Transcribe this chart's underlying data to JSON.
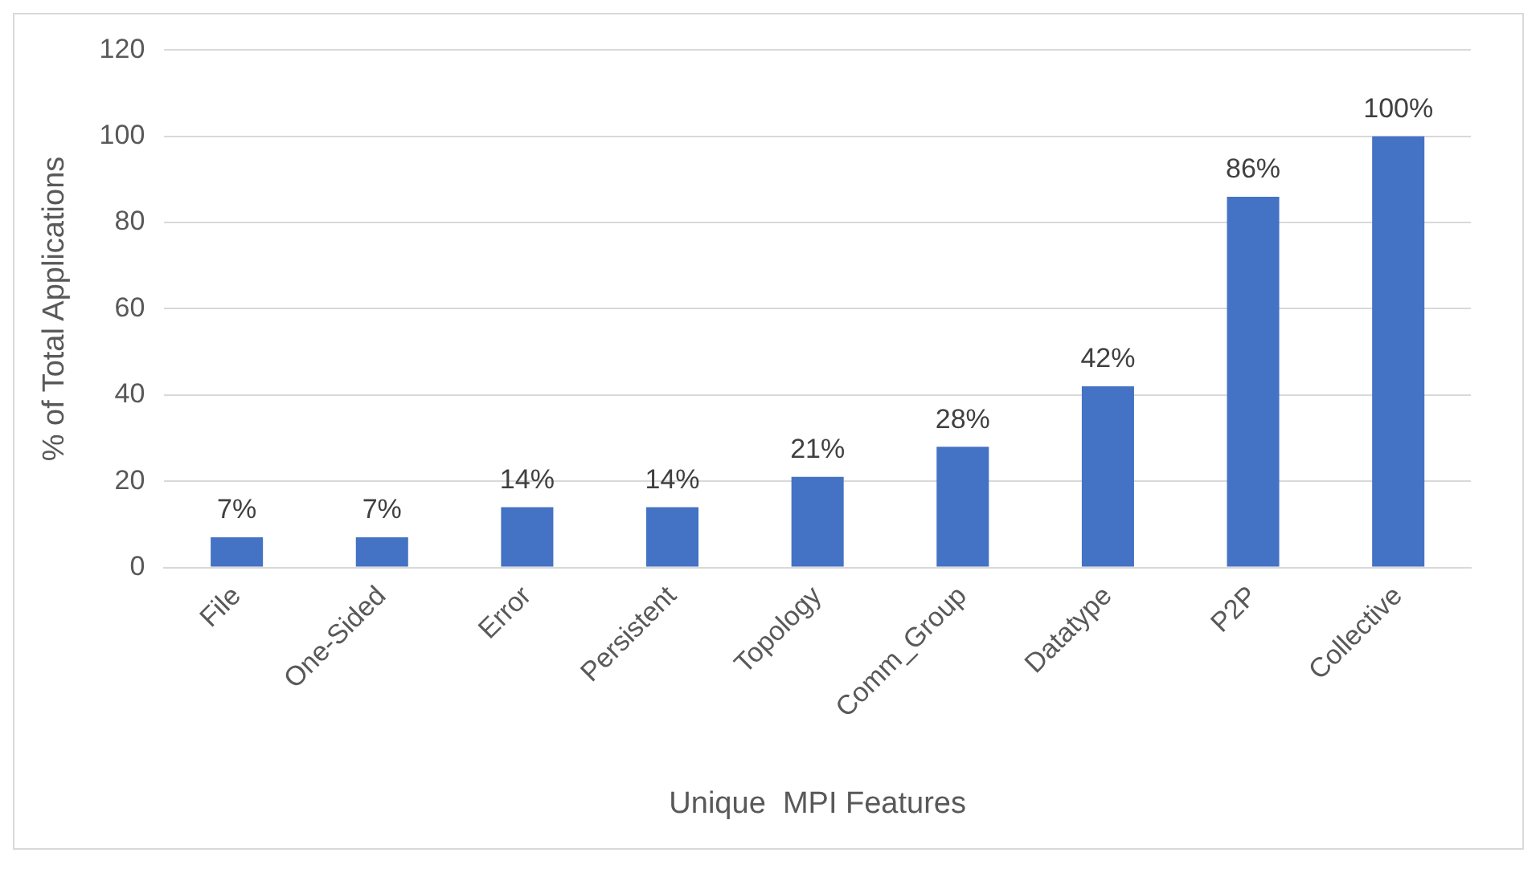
{
  "chart_data": {
    "type": "bar",
    "xlabel": "Unique  MPI Features",
    "ylabel": "% of Total Applications",
    "categories": [
      "File",
      "One-Sided",
      "Error",
      "Persistent",
      "Topology",
      "Comm_Group",
      "Datatype",
      "P2P",
      "Collective"
    ],
    "values": [
      7,
      7,
      14,
      14,
      21,
      28,
      42,
      86,
      100
    ],
    "value_labels": [
      "7%",
      "7%",
      "14%",
      "14%",
      "21%",
      "28%",
      "42%",
      "86%",
      "100%"
    ],
    "color": "#4472c4",
    "ylim": [
      0,
      120
    ],
    "yticks": [
      0,
      20,
      40,
      60,
      80,
      100,
      120
    ],
    "grid": "y",
    "legend": false
  }
}
